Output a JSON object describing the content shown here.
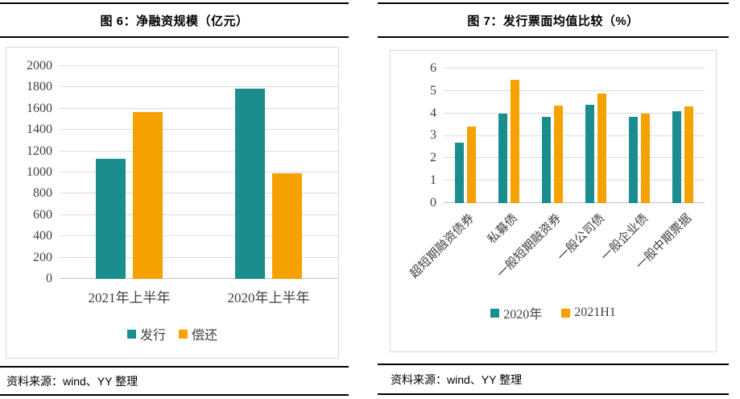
{
  "panels": [
    {
      "title": "图 6：净融资规模（亿元）",
      "source": "资料来源：wind、YY 整理"
    },
    {
      "title": "图 7：发行票面均值比较（%）",
      "source": "资料来源：wind、YY 整理"
    }
  ],
  "chart_data": [
    {
      "type": "bar",
      "title": "图 6：净融资规模（亿元）",
      "categories": [
        "2021年上半年",
        "2020年上半年"
      ],
      "series": [
        {
          "name": "发行",
          "color": "#1A8E8E",
          "values": [
            1130,
            1790
          ]
        },
        {
          "name": "偿还",
          "color": "#F5A200",
          "values": [
            1570,
            990
          ]
        }
      ],
      "xlabel": "",
      "ylabel": "",
      "ylim": [
        0,
        2000
      ],
      "ytick_step": 200,
      "grid": true,
      "legend_position": "bottom",
      "rotate_x_labels": false
    },
    {
      "type": "bar",
      "title": "图 7：发行票面均值比较（%）",
      "categories": [
        "超短期融资债券",
        "私募债",
        "一般短期融资券",
        "一般公司债",
        "一般企业债",
        "一般中期票据"
      ],
      "series": [
        {
          "name": "2020年",
          "color": "#1A8E8E",
          "values": [
            2.7,
            4.0,
            3.85,
            4.4,
            3.85,
            4.1
          ]
        },
        {
          "name": "2021H1",
          "color": "#F5A200",
          "values": [
            3.4,
            5.5,
            4.35,
            4.9,
            4.0,
            4.3
          ]
        }
      ],
      "xlabel": "",
      "ylabel": "",
      "ylim": [
        0,
        6
      ],
      "ytick_step": 1,
      "grid": true,
      "legend_position": "bottom",
      "rotate_x_labels": true
    }
  ],
  "colors": {
    "series1": "#1A8E8E",
    "series2": "#F5A200",
    "gridline": "#DCDCDC",
    "rule": "#000000"
  }
}
